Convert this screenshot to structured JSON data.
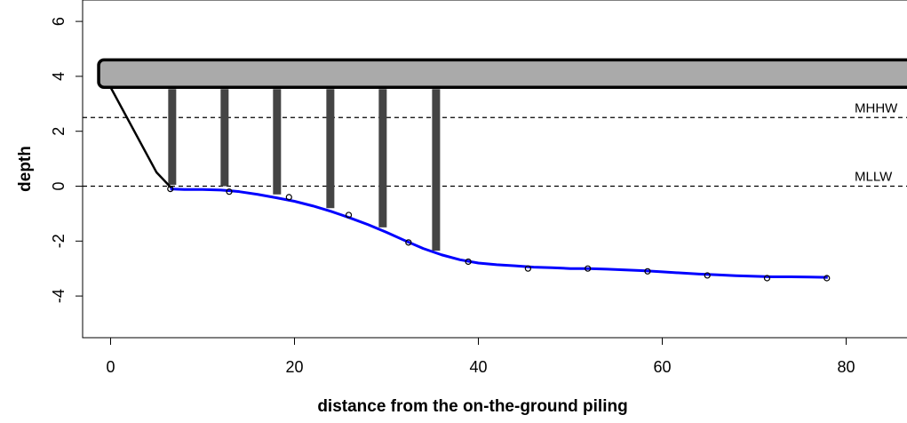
{
  "chart_data": {
    "type": "line",
    "title": "",
    "xlabel": "distance from the on-the-ground piling",
    "ylabel": "depth",
    "xlim": [
      -2.5,
      87
    ],
    "ylim": [
      -5.5,
      6.2
    ],
    "x_ticks": [
      0,
      20,
      40,
      60,
      80
    ],
    "y_ticks": [
      -4,
      -2,
      0,
      2,
      4,
      6
    ],
    "x_tick_labels": [
      "0",
      "20",
      "40",
      "60",
      "80"
    ],
    "y_tick_labels": [
      "-4",
      "-2",
      "0",
      "2",
      "4",
      "6"
    ],
    "grid": false,
    "reference_lines": [
      {
        "label": "MHHW",
        "y": 2.5,
        "style": "dashed"
      },
      {
        "label": "MLLW",
        "y": 0.0,
        "style": "dashed"
      }
    ],
    "dock": {
      "x_start": -1.3,
      "y_bottom": 3.6,
      "y_top": 4.6,
      "color": "#aaaaaa"
    },
    "pilings": [
      {
        "x": 6.7,
        "bottom": 0.05
      },
      {
        "x": 12.4,
        "bottom": 0.0
      },
      {
        "x": 18.1,
        "bottom": -0.3
      },
      {
        "x": 23.9,
        "bottom": -0.8
      },
      {
        "x": 29.6,
        "bottom": -1.5
      },
      {
        "x": 35.4,
        "bottom": -2.35
      }
    ],
    "shore_line": {
      "color": "#000000",
      "x": [
        0,
        5.0,
        6.0,
        6.7
      ],
      "y": [
        3.6,
        0.5,
        0.15,
        -0.1
      ]
    },
    "series": [
      {
        "color": "#0000ff",
        "x": [
          6.5,
          8,
          10,
          12,
          14,
          16,
          18,
          20,
          22,
          24,
          26,
          28,
          30,
          32,
          34,
          36,
          38,
          40,
          42,
          44,
          46,
          48,
          50,
          52,
          54,
          56,
          58,
          60,
          62,
          64,
          66,
          68,
          70,
          72,
          74,
          76,
          78
        ],
        "y": [
          -0.1,
          -0.12,
          -0.12,
          -0.14,
          -0.2,
          -0.3,
          -0.42,
          -0.55,
          -0.72,
          -0.92,
          -1.15,
          -1.4,
          -1.68,
          -1.98,
          -2.27,
          -2.5,
          -2.68,
          -2.8,
          -2.86,
          -2.9,
          -2.95,
          -2.97,
          -3.0,
          -3.0,
          -3.02,
          -3.05,
          -3.08,
          -3.12,
          -3.16,
          -3.2,
          -3.23,
          -3.26,
          -3.28,
          -3.3,
          -3.3,
          -3.31,
          -3.32
        ]
      }
    ],
    "points": {
      "x": [
        6.5,
        12.9,
        19.4,
        25.9,
        32.4,
        38.9,
        45.4,
        51.9,
        58.4,
        64.9,
        71.4,
        77.9
      ],
      "y": [
        -0.1,
        -0.2,
        -0.4,
        -1.05,
        -2.05,
        -2.75,
        -3.0,
        -3.0,
        -3.1,
        -3.25,
        -3.35,
        -3.35
      ]
    }
  }
}
